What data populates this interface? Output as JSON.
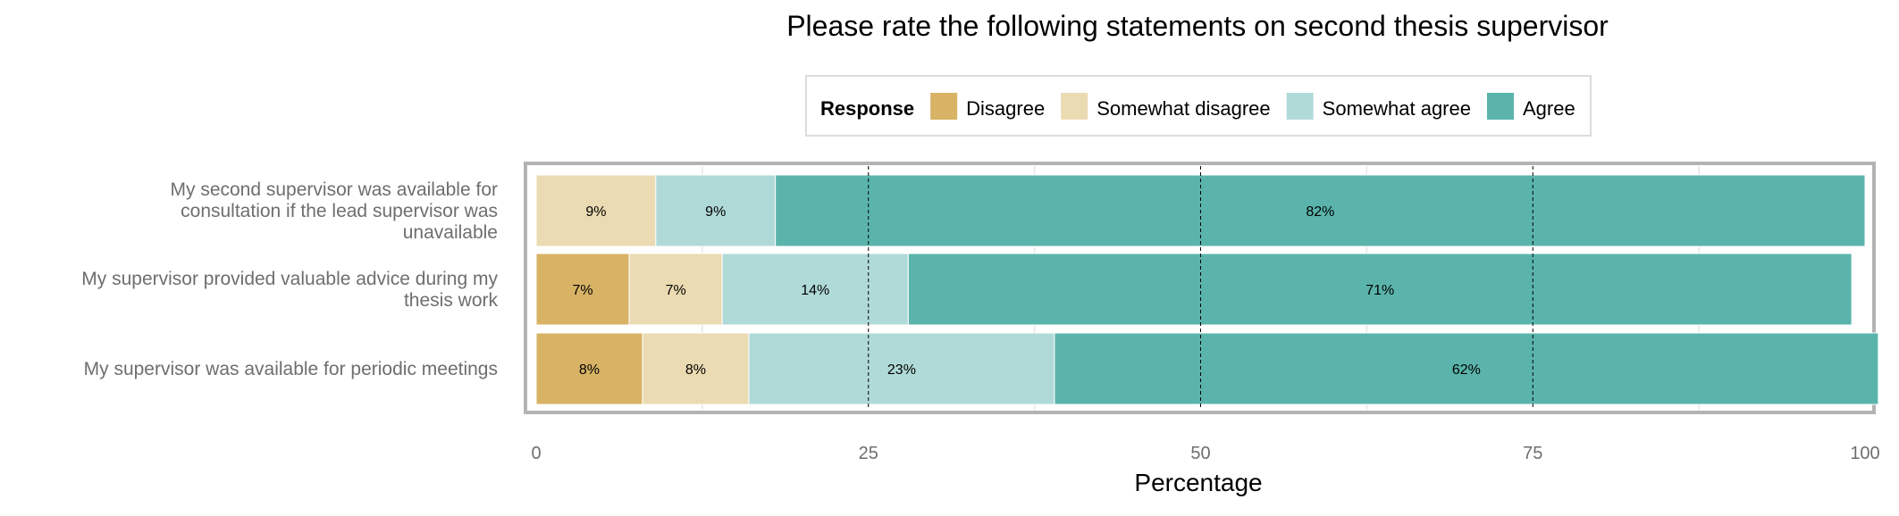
{
  "chart_data": {
    "type": "bar",
    "orientation": "horizontal",
    "stacked": true,
    "title": "Please rate the following statements on second thesis supervisor",
    "xlabel": "Percentage",
    "ylabel": "",
    "xlim": [
      0,
      100
    ],
    "xticks": [
      "0",
      "25",
      "50",
      "75",
      "100"
    ],
    "legend": {
      "title": "Response",
      "placement": "top-center",
      "entries": [
        "Disagree",
        "Somewhat disagree",
        "Somewhat agree",
        "Agree"
      ]
    },
    "colors": {
      "Disagree": "#d8b365",
      "Somewhat disagree": "#ebdbb2",
      "Somewhat agree": "#b0dad7",
      "Agree": "#5ab4ac"
    },
    "categories": [
      [
        "My second supervisor was available for",
        "consultation if the lead supervisor was",
        "unavailable"
      ],
      [
        "My supervisor provided valuable advice during my",
        "thesis work"
      ],
      [
        "My supervisor was available for periodic meetings"
      ]
    ],
    "series": [
      {
        "name": "Disagree",
        "values": [
          0,
          7,
          8
        ],
        "labels": [
          "",
          "7%",
          "8%"
        ]
      },
      {
        "name": "Somewhat disagree",
        "values": [
          9,
          7,
          8
        ],
        "labels": [
          "9%",
          "7%",
          "8%"
        ]
      },
      {
        "name": "Somewhat agree",
        "values": [
          9,
          14,
          23
        ],
        "labels": [
          "9%",
          "14%",
          "23%"
        ]
      },
      {
        "name": "Agree",
        "values": [
          82,
          71,
          62
        ],
        "labels": [
          "82%",
          "71%",
          "62%"
        ]
      }
    ],
    "grid": true
  }
}
